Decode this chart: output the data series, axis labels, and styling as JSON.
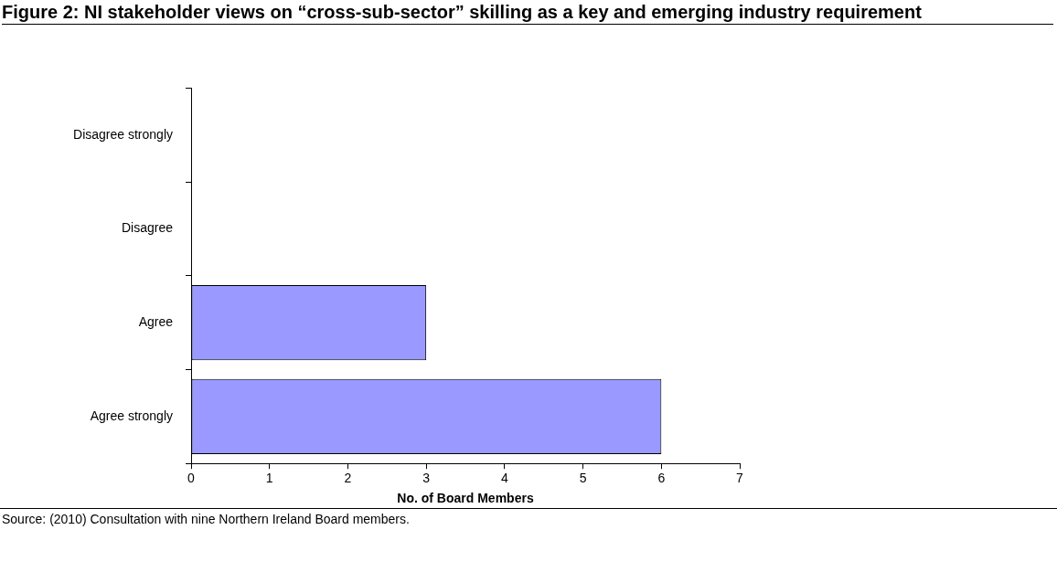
{
  "chart_data": {
    "type": "bar",
    "orientation": "horizontal",
    "title": "Figure 2: NI stakeholder views on “cross-sub-sector” skilling as a key and emerging industry requirement",
    "xlabel": "No. of Board Members",
    "categories": [
      "Disagree strongly",
      "Disagree",
      "Agree",
      "Agree strongly"
    ],
    "values": [
      0,
      0,
      3,
      6
    ],
    "color": "#9999ff",
    "xlim": [
      0,
      7
    ],
    "xticks": [
      0,
      1,
      2,
      3,
      4,
      5,
      6,
      7
    ],
    "grid": false,
    "legend": false,
    "annotations": [
      "Source: (2010) Consultation with nine Northern Ireland Board members."
    ]
  }
}
